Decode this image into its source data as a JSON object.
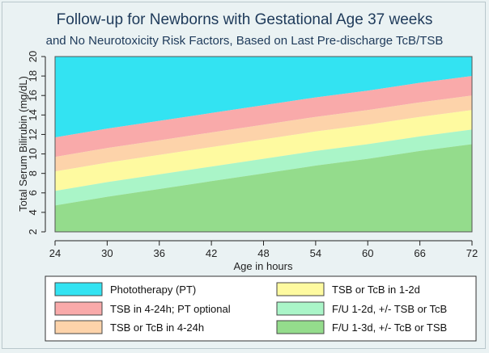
{
  "chart_data": {
    "type": "area",
    "title": "Follow-up for Newborns with Gestational Age 37 weeks",
    "subtitle": "and No Neurotoxicity Risk Factors, Based on Last Pre-discharge TcB/TSB",
    "xlabel": "Age in hours",
    "ylabel": "Total Serum Bilirubin (mg/dL)",
    "xlim": [
      24,
      72
    ],
    "ylim": [
      2,
      20
    ],
    "x_ticks": [
      "24",
      "30",
      "36",
      "42",
      "48",
      "54",
      "60",
      "66",
      "72"
    ],
    "y_ticks": [
      "2",
      "4",
      "6",
      "8",
      "10",
      "12",
      "14",
      "16",
      "18",
      "20"
    ],
    "x": [
      24,
      30,
      36,
      42,
      48,
      54,
      60,
      66,
      72
    ],
    "series": [
      {
        "name": "Phototherapy (PT)",
        "color": "#33e3f2",
        "lower": [
          11.7,
          12.6,
          13.4,
          14.2,
          15.0,
          15.8,
          16.5,
          17.3,
          18.0
        ],
        "upper": [
          20,
          20,
          20,
          20,
          20,
          20,
          20,
          20,
          20
        ]
      },
      {
        "name": "TSB in 4-24h; PT optional",
        "color": "#f9aaaa",
        "lower": [
          9.7,
          10.6,
          11.4,
          12.2,
          13.0,
          13.8,
          14.5,
          15.3,
          16.0
        ],
        "upper": [
          11.7,
          12.6,
          13.4,
          14.2,
          15.0,
          15.8,
          16.5,
          17.3,
          18.0
        ]
      },
      {
        "name": "TSB or TcB in 4-24h",
        "color": "#fdd3aa",
        "lower": [
          8.2,
          9.1,
          9.9,
          10.7,
          11.5,
          12.3,
          13.0,
          13.8,
          14.5
        ],
        "upper": [
          9.7,
          10.6,
          11.4,
          12.2,
          13.0,
          13.8,
          14.5,
          15.3,
          16.0
        ]
      },
      {
        "name": "TSB or TcB in 1-2d",
        "color": "#fefaa0",
        "lower": [
          6.2,
          7.1,
          7.9,
          8.7,
          9.5,
          10.3,
          11.0,
          11.8,
          12.5
        ],
        "upper": [
          8.2,
          9.1,
          9.9,
          10.7,
          11.5,
          12.3,
          13.0,
          13.8,
          14.5
        ]
      },
      {
        "name": "F/U 1-2d, +/- TSB or TcB",
        "color": "#aaf5c8",
        "lower": [
          4.7,
          5.6,
          6.4,
          7.2,
          8.0,
          8.8,
          9.5,
          10.3,
          11.0
        ],
        "upper": [
          6.2,
          7.1,
          7.9,
          8.7,
          9.5,
          10.3,
          11.0,
          11.8,
          12.5
        ]
      },
      {
        "name": "F/U 1-3d, +/- TcB or TSB",
        "color": "#94dc8c",
        "lower": [
          2,
          2,
          2,
          2,
          2,
          2,
          2,
          2,
          2
        ],
        "upper": [
          4.7,
          5.6,
          6.4,
          7.2,
          8.0,
          8.8,
          9.5,
          10.3,
          11.0
        ]
      }
    ],
    "grid": false,
    "legend_position": "bottom"
  }
}
